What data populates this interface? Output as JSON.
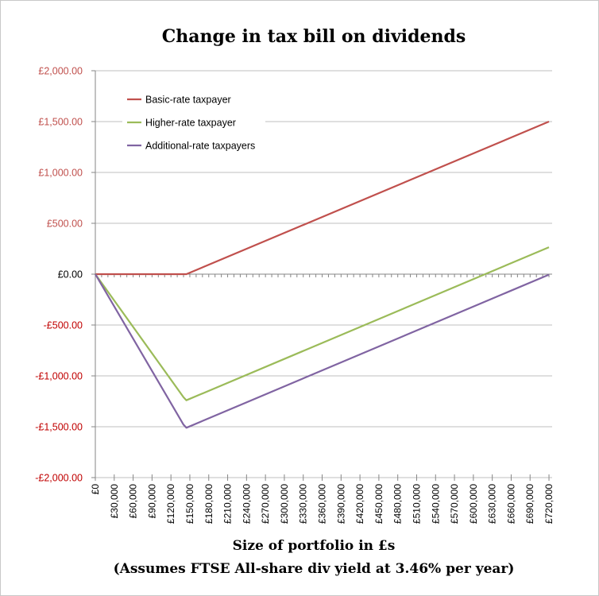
{
  "chart_data": {
    "type": "line",
    "title": "Change in tax bill on dividends",
    "xlabel": "Size of portfolio in £s",
    "subtitle": "(Assumes FTSE All-share div yield at 3.46% per year)",
    "ylabel": "",
    "ylim": [
      -2000,
      2000
    ],
    "xlim": [
      0,
      725000
    ],
    "yticks": [
      {
        "value": 2000,
        "label": "£2,000.00"
      },
      {
        "value": 1500,
        "label": "£1,500.00"
      },
      {
        "value": 1000,
        "label": "£1,000.00"
      },
      {
        "value": 500,
        "label": "£500.00"
      },
      {
        "value": 0,
        "label": "£0.00"
      },
      {
        "value": -500,
        "label": "-£500.00"
      },
      {
        "value": -1000,
        "label": "-£1,000.00"
      },
      {
        "value": -1500,
        "label": "-£1,500.00"
      },
      {
        "value": -2000,
        "label": "-£2,000.00"
      }
    ],
    "xticks": [
      {
        "value": 0,
        "label": "£0"
      },
      {
        "value": 30000,
        "label": "£30,000"
      },
      {
        "value": 60000,
        "label": "£60,000"
      },
      {
        "value": 90000,
        "label": "£90,000"
      },
      {
        "value": 120000,
        "label": "£120,000"
      },
      {
        "value": 150000,
        "label": "£150,000"
      },
      {
        "value": 180000,
        "label": "£180,000"
      },
      {
        "value": 210000,
        "label": "£210,000"
      },
      {
        "value": 240000,
        "label": "£240,000"
      },
      {
        "value": 270000,
        "label": "£270,000"
      },
      {
        "value": 300000,
        "label": "£300,000"
      },
      {
        "value": 330000,
        "label": "£330,000"
      },
      {
        "value": 360000,
        "label": "£360,000"
      },
      {
        "value": 390000,
        "label": "£390,000"
      },
      {
        "value": 420000,
        "label": "£420,000"
      },
      {
        "value": 450000,
        "label": "£450,000"
      },
      {
        "value": 480000,
        "label": "£480,000"
      },
      {
        "value": 510000,
        "label": "£510,000"
      },
      {
        "value": 540000,
        "label": "£540,000"
      },
      {
        "value": 570000,
        "label": "£570,000"
      },
      {
        "value": 600000,
        "label": "£600,000"
      },
      {
        "value": 630000,
        "label": "£630,000"
      },
      {
        "value": 660000,
        "label": "£660,000"
      },
      {
        "value": 690000,
        "label": "£690,000"
      },
      {
        "value": 720000,
        "label": "£720,000"
      }
    ],
    "series": [
      {
        "name": "Basic-rate taxpayer",
        "color": "#c0504d",
        "points": [
          [
            0,
            0
          ],
          [
            144500,
            0
          ],
          [
            720000,
            1500
          ]
        ]
      },
      {
        "name": "Higher-rate taxpayer",
        "color": "#9bbb59",
        "points": [
          [
            0,
            0
          ],
          [
            140000,
            -1210
          ],
          [
            144500,
            -1240
          ],
          [
            720000,
            265
          ]
        ]
      },
      {
        "name": "Additional-rate taxpayers",
        "color": "#8064a2",
        "points": [
          [
            0,
            0
          ],
          [
            140000,
            -1480
          ],
          [
            144500,
            -1510
          ],
          [
            720000,
            -5
          ]
        ]
      }
    ],
    "legend_position": "top-left",
    "grid": "horizontal",
    "colors": {
      "positive_tick": "#c0504d",
      "negative_tick": "#c00000",
      "zero_tick": "#000000",
      "gridline": "#bfbfbf",
      "axis": "#868686"
    }
  }
}
